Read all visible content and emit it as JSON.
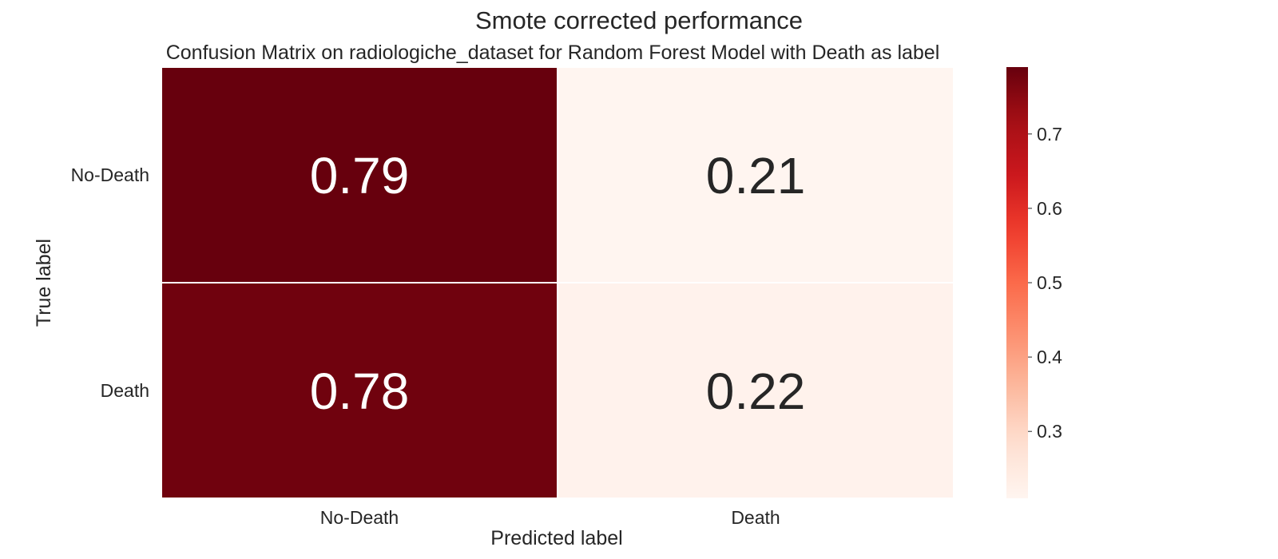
{
  "chart_data": {
    "type": "heatmap",
    "suptitle": "Smote corrected performance",
    "title": "Confusion Matrix on radiologiche_dataset for Random Forest Model with Death as label",
    "xlabel": "Predicted label",
    "ylabel": "True label",
    "x_categories": [
      "No-Death",
      "Death"
    ],
    "y_categories": [
      "No-Death",
      "Death"
    ],
    "values": [
      [
        0.79,
        0.21
      ],
      [
        0.78,
        0.22
      ]
    ],
    "cell_labels": [
      [
        "0.79",
        "0.21"
      ],
      [
        "0.78",
        "0.22"
      ]
    ],
    "colormap": "Reds",
    "colorbar": {
      "range": [
        0.21,
        0.79
      ],
      "ticks": [
        0.3,
        0.4,
        0.5,
        0.6,
        0.7
      ],
      "tick_labels": [
        "0.3",
        "0.4",
        "0.5",
        "0.6",
        "0.7"
      ]
    },
    "cell_border_color": "#ffffff",
    "text_color_dark": "#262626",
    "text_color_light": "#ffffff"
  }
}
